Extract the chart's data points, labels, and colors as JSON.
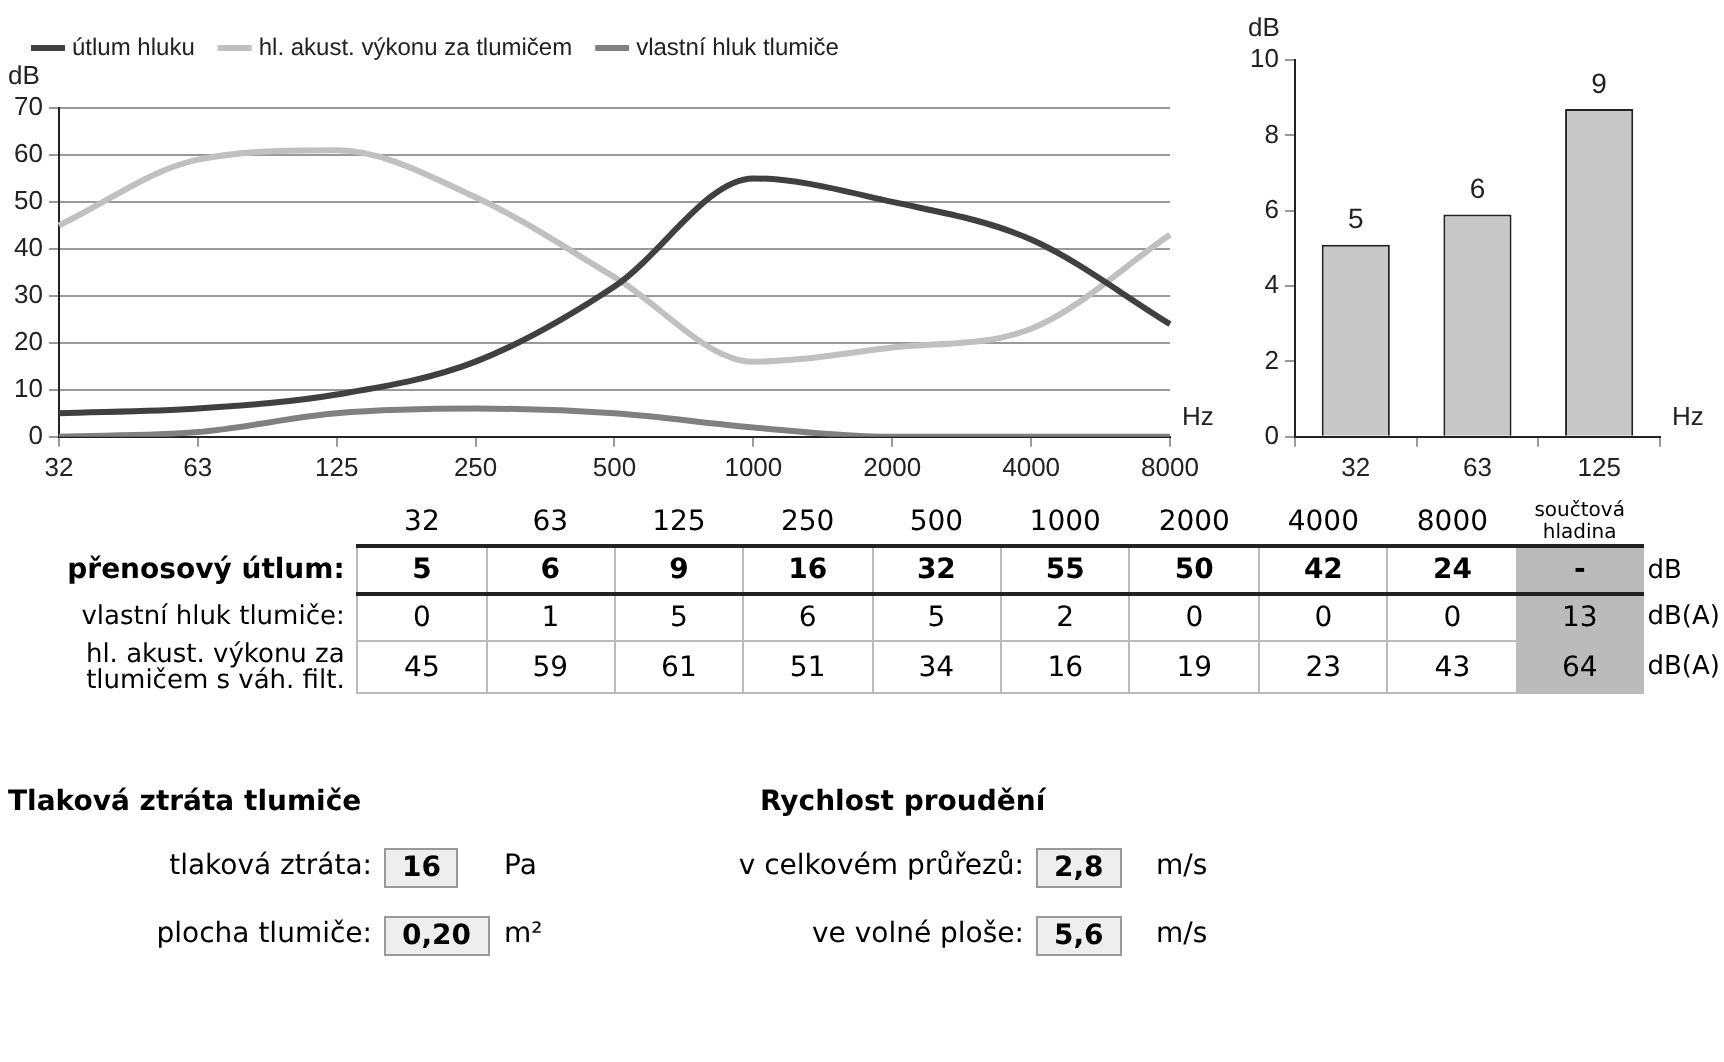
{
  "chart_data": [
    {
      "type": "line",
      "categories": [
        "32",
        "63",
        "125",
        "250",
        "500",
        "1000",
        "2000",
        "4000",
        "8000"
      ],
      "series": [
        {
          "name": "útlum hluku",
          "color": "#404040",
          "values": [
            5,
            6,
            9,
            16,
            32,
            55,
            50,
            42,
            24
          ]
        },
        {
          "name": "hl. akust. výkonu za tlumičem",
          "color": "#c0c0c0",
          "values": [
            45,
            59,
            61,
            51,
            34,
            16,
            19,
            23,
            43
          ]
        },
        {
          "name": "vlastní hluk tlumiče",
          "color": "#808080",
          "values": [
            0,
            1,
            5,
            6,
            5,
            2,
            0,
            0,
            0
          ]
        }
      ],
      "ylim": [
        0,
        70
      ],
      "yticks": [
        0,
        10,
        20,
        30,
        40,
        50,
        60,
        70
      ],
      "ylabel": "dB",
      "xlabel": "Hz",
      "grid": "y",
      "legend": "top",
      "marker": "none"
    },
    {
      "type": "bar",
      "categories": [
        "32",
        "63",
        "125"
      ],
      "values": [
        5.1,
        5.9,
        8.7
      ],
      "value_labels": [
        "5",
        "6",
        "9"
      ],
      "color": "#c8c8c8",
      "ylim": [
        0,
        10
      ],
      "yticks": [
        0,
        2,
        4,
        6,
        8,
        10
      ],
      "ylabel": "dB",
      "xlabel": "Hz",
      "grid": false
    },
    {
      "type": "other",
      "categories": [
        "32",
        "63",
        "125",
        "250",
        "500",
        "1000",
        "2000",
        "4000",
        "8000",
        "součtová hladina"
      ],
      "y_categories": [
        "přenosový útlum:",
        "vlastní hluk tlumiče:",
        "hl. akust. výkonu za tlumičem s váh. filt."
      ],
      "y2_categories": [
        "dB",
        "dB(A)",
        "dB(A)"
      ],
      "cell_labels": [
        [
          "5",
          "6",
          "9",
          "16",
          "32",
          "55",
          "50",
          "42",
          "24",
          "-"
        ],
        [
          "0",
          "1",
          "5",
          "6",
          "5",
          "2",
          "0",
          "0",
          "0",
          "13"
        ],
        [
          "45",
          "59",
          "61",
          "51",
          "34",
          "16",
          "19",
          "23",
          "43",
          "64"
        ]
      ]
    },
    {
      "type": "other",
      "annotations": [
        "Tlaková ztráta tlumiče",
        "tlaková ztráta:",
        "16",
        "Pa",
        "plocha tlumiče:",
        "0,20",
        "m²",
        "Rychlost proudění",
        "v celkovém průřezů:",
        "2,8",
        "m/s",
        "ve volné ploše:",
        "5,6",
        "m/s"
      ]
    }
  ]
}
